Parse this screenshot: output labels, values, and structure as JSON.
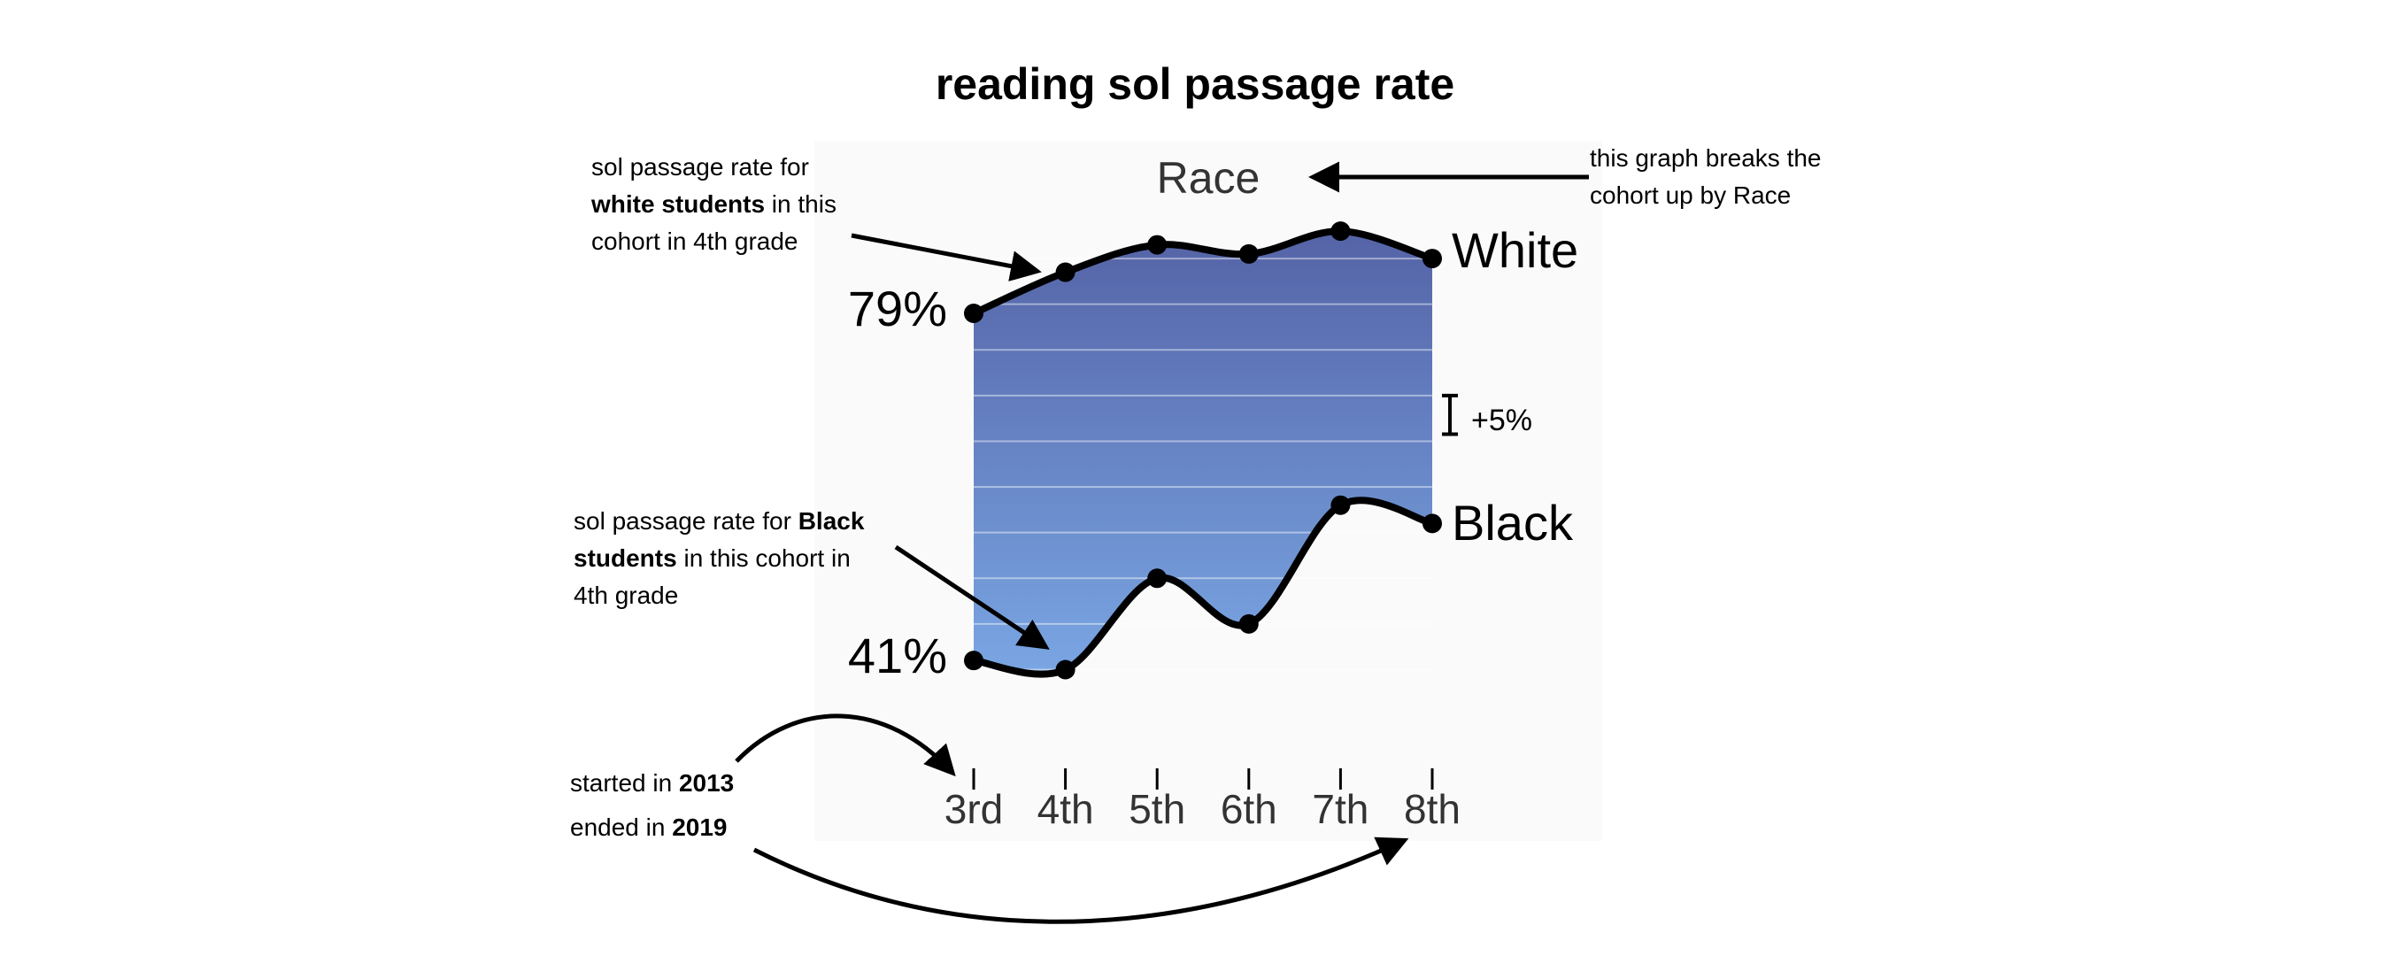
{
  "title": "reading sol passage rate",
  "chart_data": {
    "type": "line",
    "header": "Race",
    "categories": [
      "3rd",
      "4th",
      "5th",
      "6th",
      "7th",
      "8th"
    ],
    "series": [
      {
        "name": "White",
        "values": [
          79,
          83.5,
          86.5,
          85.5,
          88,
          85
        ]
      },
      {
        "name": "Black",
        "values": [
          41,
          40,
          50,
          45,
          58,
          56
        ]
      }
    ],
    "start_label": "79%",
    "end_label": "41%",
    "scale_label": "+5%",
    "scale_step": 5,
    "colors": {
      "top": "#5463a6",
      "bottom": "#7aa6e3",
      "line": "#000000",
      "panel": "#fafafa"
    }
  },
  "annotations": {
    "white": {
      "line1": "sol passage rate for",
      "bold": "white students",
      "rest": " in this",
      "line3": "cohort in 4th grade"
    },
    "race": {
      "line1": "this graph breaks the",
      "line2": "cohort up by Race"
    },
    "black": {
      "pre": "sol passage rate for ",
      "bold1": "Black",
      "bold2": "students",
      "rest": " in this cohort in",
      "line3": "4th grade"
    },
    "started": {
      "text": "started in ",
      "year": "2013"
    },
    "ended": {
      "text": "ended in ",
      "year": "2019"
    }
  }
}
